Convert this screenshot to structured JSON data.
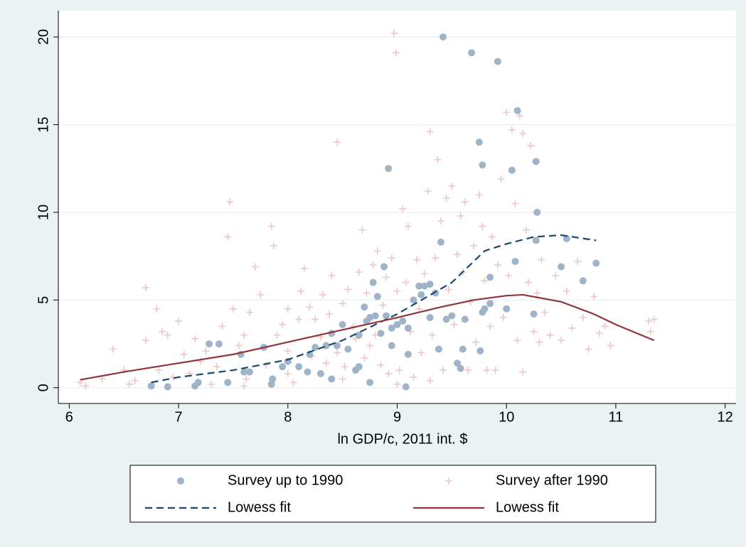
{
  "chart_data": {
    "type": "scatter",
    "x_label": "ln GDP/c, 2011 int. $",
    "xlim": [
      5.9,
      12.1
    ],
    "xticks": [
      6,
      7,
      8,
      9,
      10,
      11,
      12
    ],
    "ylim": [
      -0.9,
      21.5
    ],
    "yticks": [
      0,
      5,
      10,
      15,
      20
    ],
    "grid": true,
    "legend": "bottom",
    "series": [
      {
        "name": "Survey up to 1990",
        "color": "#9fb4c8",
        "marker": "circle",
        "x": [
          6.75,
          6.9,
          7.15,
          7.18,
          7.28,
          7.37,
          7.45,
          7.57,
          7.6,
          7.65,
          7.78,
          7.85,
          7.86,
          7.95,
          8.0,
          8.1,
          8.18,
          8.2,
          8.25,
          8.3,
          8.35,
          8.4,
          8.4,
          8.45,
          8.5,
          8.55,
          8.62,
          8.65,
          8.65,
          8.7,
          8.72,
          8.75,
          8.8,
          8.75,
          8.78,
          8.82,
          8.85,
          8.88,
          8.9,
          8.92,
          8.95,
          8.95,
          9.0,
          9.05,
          9.08,
          9.1,
          9.15,
          9.2,
          9.22,
          9.25,
          9.3,
          9.35,
          9.38,
          9.4,
          9.42,
          9.45,
          9.55,
          9.58,
          9.6,
          9.62,
          9.68,
          9.75,
          9.78,
          9.76,
          9.78,
          9.8,
          9.85,
          9.85,
          9.92,
          10.0,
          10.05,
          10.08,
          10.1,
          10.25,
          10.27,
          10.28,
          10.27,
          10.5,
          10.55,
          10.7,
          10.82,
          9.5,
          9.3,
          9.1
        ],
        "values": [
          0.1,
          0.05,
          0.1,
          0.3,
          2.5,
          2.5,
          0.3,
          1.9,
          0.9,
          0.9,
          2.3,
          0.2,
          0.5,
          1.2,
          1.5,
          1.2,
          0.9,
          1.9,
          2.3,
          0.8,
          2.4,
          0.5,
          3.1,
          2.4,
          3.6,
          2.2,
          1.0,
          1.2,
          3.0,
          4.6,
          3.8,
          4.0,
          4.1,
          0.3,
          6.0,
          5.2,
          3.1,
          6.9,
          4.1,
          12.5,
          3.4,
          2.4,
          3.6,
          3.8,
          0.05,
          3.4,
          5.0,
          5.8,
          5.3,
          5.8,
          5.9,
          5.4,
          2.2,
          8.3,
          20.0,
          3.9,
          1.4,
          1.1,
          2.2,
          3.9,
          19.1,
          14.0,
          12.7,
          2.1,
          4.3,
          4.5,
          6.3,
          4.8,
          18.6,
          4.5,
          12.4,
          7.2,
          15.8,
          4.2,
          12.9,
          10.0,
          8.4,
          6.9,
          8.5,
          6.1,
          7.1,
          4.1,
          4.0,
          1.9
        ]
      },
      {
        "name": "Survey after 1990",
        "color": "#ecc4c4",
        "marker": "plus",
        "x": [
          6.1,
          6.15,
          6.3,
          6.4,
          6.5,
          6.55,
          6.6,
          6.7,
          6.7,
          6.8,
          6.82,
          6.85,
          6.9,
          6.95,
          7.0,
          7.05,
          7.1,
          7.15,
          7.2,
          7.25,
          7.3,
          7.35,
          7.4,
          7.45,
          7.47,
          7.5,
          7.55,
          7.6,
          7.62,
          7.65,
          7.7,
          7.75,
          7.8,
          7.85,
          7.87,
          7.9,
          7.95,
          8.0,
          8.0,
          8.05,
          8.1,
          8.12,
          8.15,
          8.2,
          8.22,
          8.25,
          8.3,
          8.32,
          8.35,
          8.38,
          8.4,
          8.45,
          8.45,
          8.5,
          8.52,
          8.55,
          8.6,
          8.62,
          8.65,
          8.68,
          8.7,
          8.72,
          8.75,
          8.78,
          8.8,
          8.82,
          8.85,
          8.87,
          8.9,
          8.92,
          8.95,
          8.97,
          8.99,
          9.0,
          9.02,
          9.05,
          9.08,
          9.1,
          9.12,
          9.15,
          9.18,
          9.2,
          9.22,
          9.25,
          9.28,
          9.3,
          9.32,
          9.35,
          9.37,
          9.4,
          9.42,
          9.45,
          9.47,
          9.5,
          9.52,
          9.55,
          9.58,
          9.6,
          9.62,
          9.65,
          9.67,
          9.7,
          9.72,
          9.75,
          9.78,
          9.8,
          9.82,
          9.85,
          9.87,
          9.9,
          9.92,
          9.95,
          9.97,
          10.0,
          10.02,
          10.05,
          10.08,
          10.1,
          10.12,
          10.15,
          10.15,
          10.18,
          10.2,
          10.22,
          10.25,
          10.28,
          10.3,
          10.32,
          10.35,
          10.4,
          10.45,
          10.5,
          10.55,
          10.6,
          10.65,
          10.7,
          10.75,
          10.8,
          10.85,
          10.9,
          10.95,
          11.3,
          11.32,
          11.35,
          9.3,
          9.0,
          8.5,
          8.0,
          7.6
        ],
        "values": [
          0.3,
          0.1,
          0.5,
          2.2,
          1.0,
          0.2,
          0.4,
          5.7,
          2.7,
          4.5,
          1.0,
          3.2,
          3.0,
          0.6,
          3.8,
          1.9,
          0.8,
          2.8,
          1.5,
          2.1,
          0.2,
          1.2,
          3.5,
          8.6,
          10.6,
          4.5,
          2.4,
          3.0,
          0.5,
          4.3,
          6.9,
          5.3,
          1.3,
          9.2,
          8.1,
          3.0,
          3.6,
          4.5,
          2.1,
          0.3,
          3.9,
          5.5,
          6.8,
          4.6,
          1.8,
          3.9,
          2.9,
          5.3,
          1.4,
          4.2,
          6.4,
          14.0,
          2.0,
          4.8,
          1.2,
          5.6,
          3.5,
          2.8,
          6.6,
          9.0,
          1.7,
          5.4,
          2.4,
          7.0,
          3.0,
          7.8,
          1.3,
          4.7,
          6.3,
          0.8,
          7.4,
          20.2,
          19.1,
          5.5,
          1.0,
          10.2,
          6.0,
          9.2,
          3.2,
          0.6,
          7.3,
          4.5,
          2.0,
          6.5,
          11.2,
          14.6,
          3.0,
          7.4,
          13.0,
          9.5,
          1.0,
          10.8,
          5.6,
          11.5,
          3.6,
          7.6,
          9.8,
          6.6,
          10.6,
          1.0,
          4.9,
          8.1,
          2.6,
          11.0,
          9.2,
          6.1,
          1.0,
          3.5,
          8.6,
          1.0,
          7.0,
          11.9,
          4.0,
          15.7,
          6.4,
          14.7,
          10.5,
          2.7,
          15.5,
          14.5,
          0.9,
          9.0,
          6.0,
          13.8,
          3.2,
          5.4,
          2.6,
          7.3,
          4.3,
          3.0,
          6.4,
          2.7,
          5.5,
          3.4,
          7.2,
          4.0,
          2.2,
          5.2,
          3.1,
          3.5,
          2.4,
          3.8,
          3.2,
          3.9,
          0.4,
          0.2,
          0.5,
          0.8,
          0.1
        ]
      },
      {
        "name": "Lowess fit",
        "color": "#1a476f",
        "marker": "dash",
        "x": [
          6.75,
          7.0,
          7.5,
          8.0,
          8.5,
          9.0,
          9.5,
          9.8,
          10.0,
          10.25,
          10.5,
          10.82
        ],
        "values": [
          0.3,
          0.6,
          1.0,
          1.6,
          2.7,
          4.2,
          6.0,
          7.8,
          8.2,
          8.6,
          8.7,
          8.4
        ]
      },
      {
        "name": "Lowess fit",
        "color": "#90353b",
        "marker": "solid",
        "x": [
          6.1,
          6.5,
          7.0,
          7.5,
          8.0,
          8.5,
          9.0,
          9.4,
          9.7,
          10.0,
          10.15,
          10.5,
          10.8,
          11.0,
          11.35
        ],
        "values": [
          0.45,
          0.9,
          1.4,
          1.9,
          2.6,
          3.3,
          4.0,
          4.6,
          5.0,
          5.25,
          5.3,
          4.9,
          4.2,
          3.6,
          2.7
        ]
      }
    ]
  }
}
